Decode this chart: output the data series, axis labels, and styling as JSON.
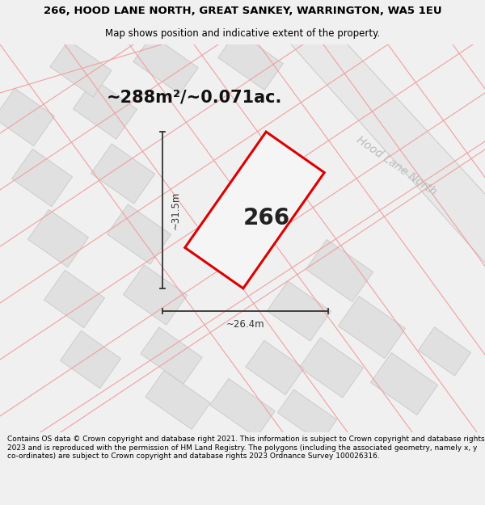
{
  "title_line1": "266, HOOD LANE NORTH, GREAT SANKEY, WARRINGTON, WA5 1EU",
  "title_line2": "Map shows position and indicative extent of the property.",
  "area_label": "~288m²/~0.071ac.",
  "property_number": "266",
  "width_label": "~26.4m",
  "height_label": "~31.5m",
  "street_label": "Hood Lane North",
  "footer_text": "Contains OS data © Crown copyright and database right 2021. This information is subject to Crown copyright and database rights 2023 and is reproduced with the permission of HM Land Registry. The polygons (including the associated geometry, namely x, y co-ordinates) are subject to Crown copyright and database rights 2023 Ordnance Survey 100026316.",
  "bg_color": "#f0f0f0",
  "map_bg": "#ffffff",
  "property_fill": "#efefef",
  "property_edge": "#dd0000",
  "road_fill": "#e8e8e8",
  "road_edge": "#cccccc",
  "building_fill": "#e0e0e0",
  "building_edge": "#cccccc",
  "pink_line_color": "#f0a0a0",
  "dim_line_color": "#333333",
  "street_label_color": "#bbbbbb",
  "title_fontsize": 9.5,
  "subtitle_fontsize": 8.5,
  "area_fontsize": 15,
  "number_fontsize": 20,
  "dim_fontsize": 8.5,
  "street_fontsize": 10,
  "footer_fontsize": 6.5
}
